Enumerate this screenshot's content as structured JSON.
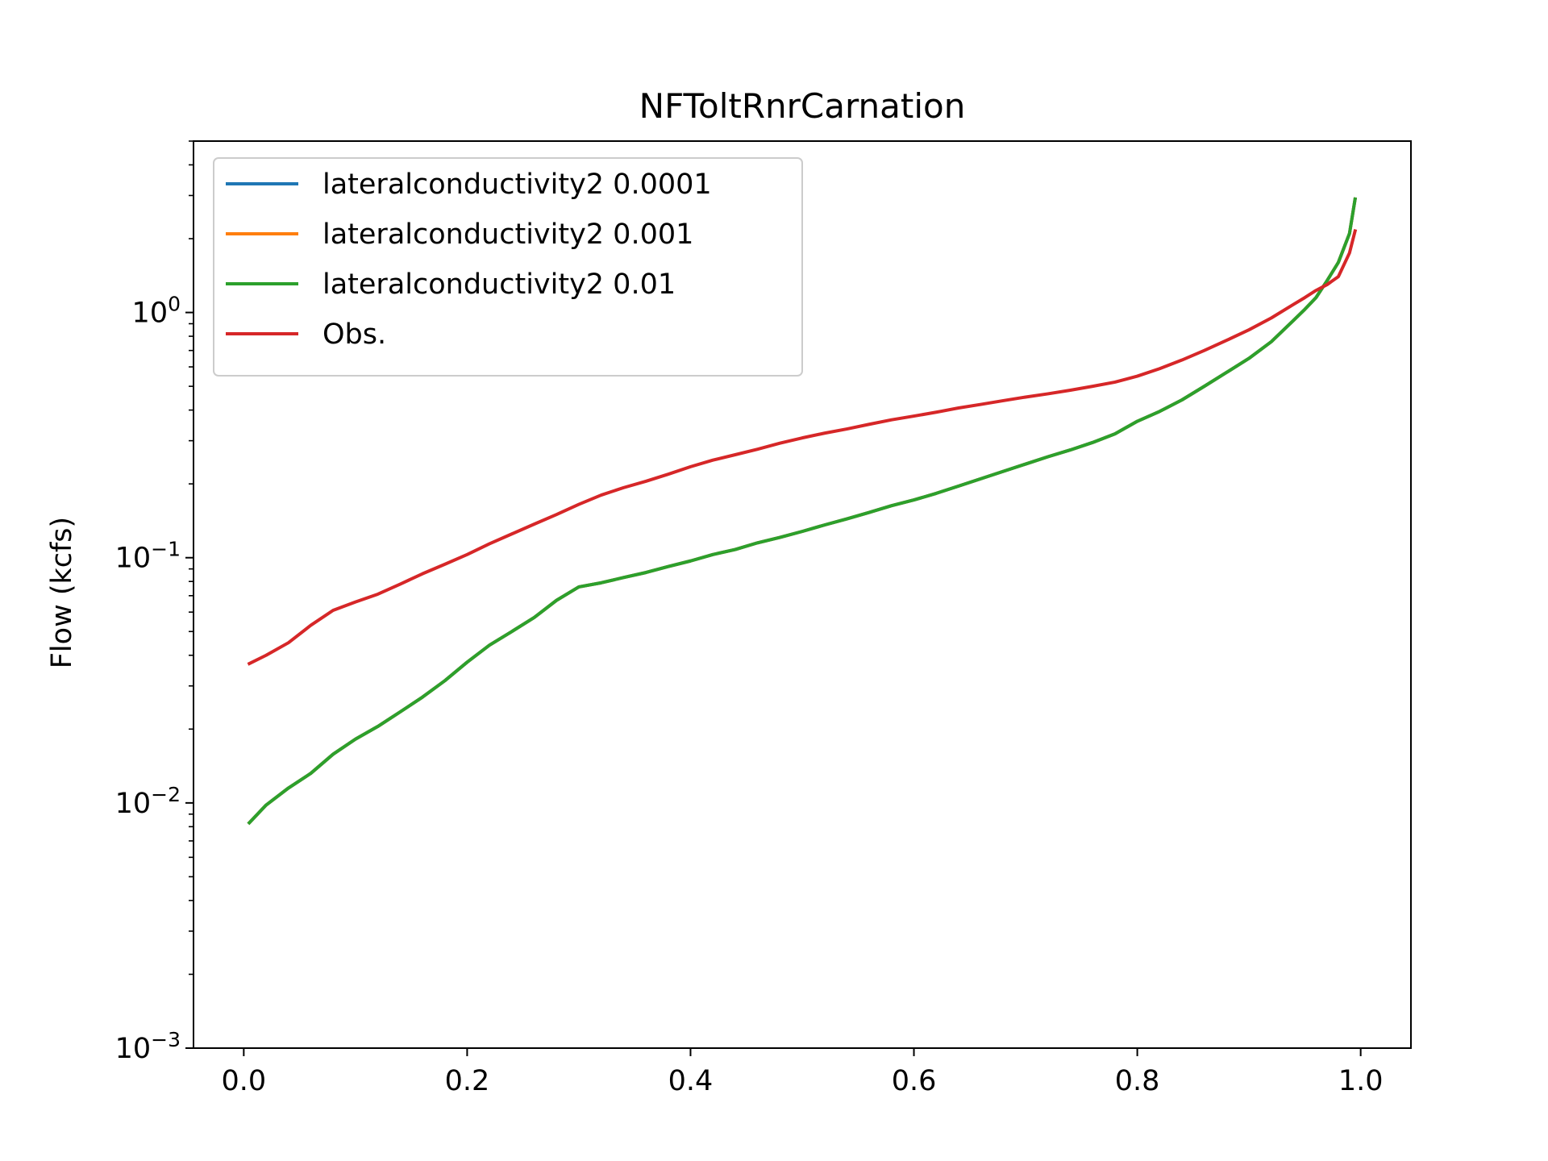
{
  "chart_data": {
    "type": "line",
    "title": "NFToltRnrCarnation",
    "xlabel": "",
    "ylabel": "Flow (kcfs)",
    "xlim": [
      -0.045,
      1.045
    ],
    "ylim": [
      0.001,
      5.0
    ],
    "yscale": "log",
    "xticks": [
      0.0,
      0.2,
      0.4,
      0.6,
      0.8,
      1.0
    ],
    "xtick_labels": [
      "0.0",
      "0.2",
      "0.4",
      "0.6",
      "0.8",
      "1.0"
    ],
    "yticks": [
      0.001,
      0.01,
      0.1,
      1.0
    ],
    "ytick_labels": [
      {
        "base": "10",
        "exp": "−3"
      },
      {
        "base": "10",
        "exp": "−2"
      },
      {
        "base": "10",
        "exp": "−1"
      },
      {
        "base": "10",
        "exp": "0"
      }
    ],
    "grid": false,
    "legend_position": "upper left",
    "x": [
      0.005,
      0.02,
      0.04,
      0.06,
      0.08,
      0.1,
      0.12,
      0.14,
      0.16,
      0.18,
      0.2,
      0.22,
      0.24,
      0.26,
      0.28,
      0.3,
      0.32,
      0.34,
      0.36,
      0.38,
      0.4,
      0.42,
      0.44,
      0.46,
      0.48,
      0.5,
      0.52,
      0.54,
      0.56,
      0.58,
      0.6,
      0.62,
      0.64,
      0.66,
      0.68,
      0.7,
      0.72,
      0.74,
      0.76,
      0.78,
      0.8,
      0.82,
      0.84,
      0.86,
      0.88,
      0.9,
      0.92,
      0.94,
      0.95,
      0.96,
      0.97,
      0.98,
      0.99,
      0.995
    ],
    "series": [
      {
        "name": "lateralconductivity2 0.0001",
        "color": "#1f77b4",
        "values": [
          0.0083,
          0.0098,
          0.0115,
          0.0132,
          0.0158,
          0.0182,
          0.0205,
          0.0235,
          0.027,
          0.0315,
          0.0375,
          0.044,
          0.05,
          0.057,
          0.067,
          0.076,
          0.079,
          0.083,
          0.087,
          0.092,
          0.097,
          0.103,
          0.108,
          0.115,
          0.121,
          0.128,
          0.136,
          0.144,
          0.153,
          0.163,
          0.172,
          0.183,
          0.196,
          0.21,
          0.225,
          0.241,
          0.258,
          0.275,
          0.295,
          0.32,
          0.36,
          0.395,
          0.44,
          0.5,
          0.57,
          0.65,
          0.76,
          0.93,
          1.03,
          1.15,
          1.35,
          1.6,
          2.1,
          2.9
        ]
      },
      {
        "name": "lateralconductivity2 0.001",
        "color": "#ff7f0e",
        "values": [
          0.0083,
          0.0098,
          0.0115,
          0.0132,
          0.0158,
          0.0182,
          0.0205,
          0.0235,
          0.027,
          0.0315,
          0.0375,
          0.044,
          0.05,
          0.057,
          0.067,
          0.076,
          0.079,
          0.083,
          0.087,
          0.092,
          0.097,
          0.103,
          0.108,
          0.115,
          0.121,
          0.128,
          0.136,
          0.144,
          0.153,
          0.163,
          0.172,
          0.183,
          0.196,
          0.21,
          0.225,
          0.241,
          0.258,
          0.275,
          0.295,
          0.32,
          0.36,
          0.395,
          0.44,
          0.5,
          0.57,
          0.65,
          0.76,
          0.93,
          1.03,
          1.15,
          1.35,
          1.6,
          2.1,
          2.9
        ]
      },
      {
        "name": "lateralconductivity2 0.01",
        "color": "#2ca02c",
        "values": [
          0.0083,
          0.0098,
          0.0115,
          0.0132,
          0.0158,
          0.0182,
          0.0205,
          0.0235,
          0.027,
          0.0315,
          0.0375,
          0.044,
          0.05,
          0.057,
          0.067,
          0.076,
          0.079,
          0.083,
          0.087,
          0.092,
          0.097,
          0.103,
          0.108,
          0.115,
          0.121,
          0.128,
          0.136,
          0.144,
          0.153,
          0.163,
          0.172,
          0.183,
          0.196,
          0.21,
          0.225,
          0.241,
          0.258,
          0.275,
          0.295,
          0.32,
          0.36,
          0.395,
          0.44,
          0.5,
          0.57,
          0.65,
          0.76,
          0.93,
          1.03,
          1.15,
          1.35,
          1.6,
          2.1,
          2.9
        ]
      },
      {
        "name": "Obs.",
        "color": "#d62728",
        "values": [
          0.037,
          0.04,
          0.045,
          0.053,
          0.061,
          0.066,
          0.071,
          0.078,
          0.086,
          0.094,
          0.103,
          0.114,
          0.125,
          0.137,
          0.15,
          0.165,
          0.18,
          0.193,
          0.205,
          0.219,
          0.235,
          0.25,
          0.263,
          0.277,
          0.293,
          0.308,
          0.322,
          0.335,
          0.35,
          0.365,
          0.378,
          0.392,
          0.408,
          0.422,
          0.437,
          0.452,
          0.466,
          0.482,
          0.5,
          0.52,
          0.55,
          0.59,
          0.64,
          0.7,
          0.77,
          0.85,
          0.95,
          1.08,
          1.15,
          1.23,
          1.3,
          1.4,
          1.75,
          2.15
        ]
      }
    ]
  }
}
